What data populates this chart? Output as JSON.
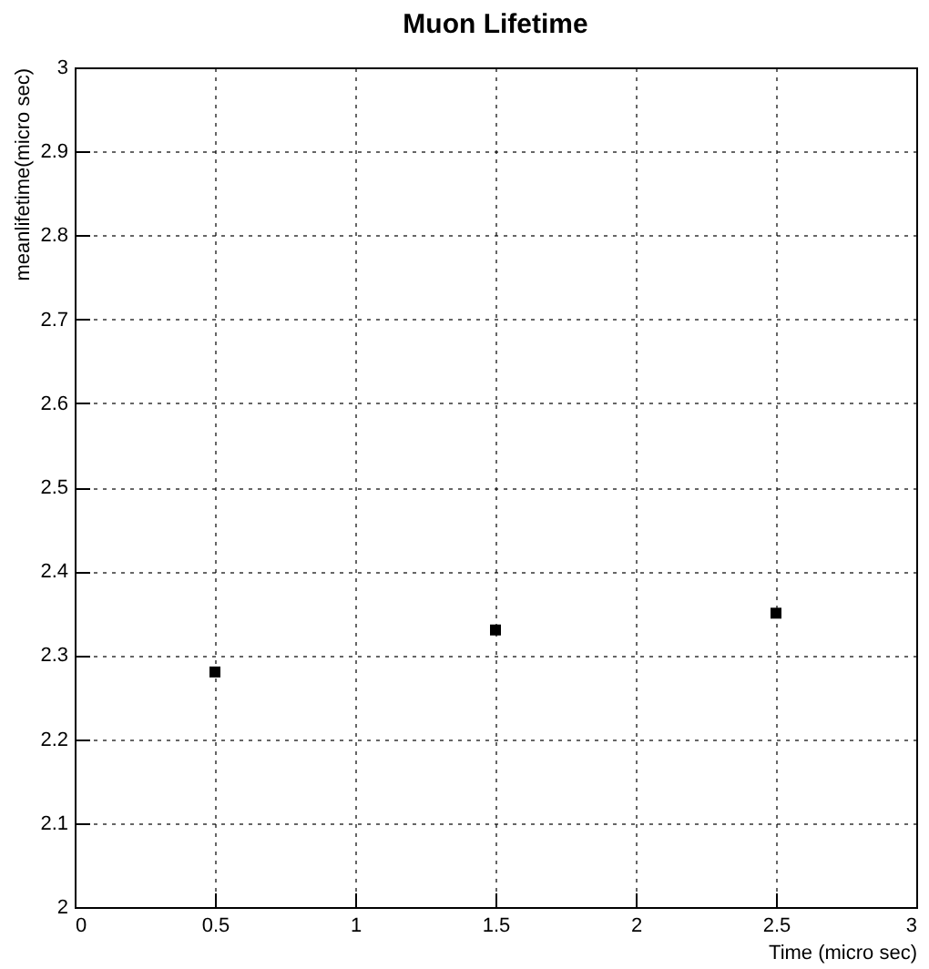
{
  "chart_data": {
    "type": "scatter",
    "title": "Muon Lifetime",
    "xlabel": "Time (micro sec)",
    "ylabel": "meanlifetime(micro sec)",
    "x": [
      0.5,
      1.5,
      2.5
    ],
    "series": [
      {
        "color": "#000000",
        "values": [
          2.28,
          2.33,
          2.35
        ]
      }
    ],
    "xlim": [
      0,
      3
    ],
    "xticks": [
      0,
      0.5,
      1,
      1.5,
      2,
      2.5,
      3
    ],
    "ylim": [
      2,
      3
    ],
    "yticks": [
      2,
      2.1,
      2.2,
      2.3,
      2.4,
      2.5,
      2.6,
      2.7,
      2.8,
      2.9,
      3
    ],
    "grid": true,
    "marker": "square"
  }
}
